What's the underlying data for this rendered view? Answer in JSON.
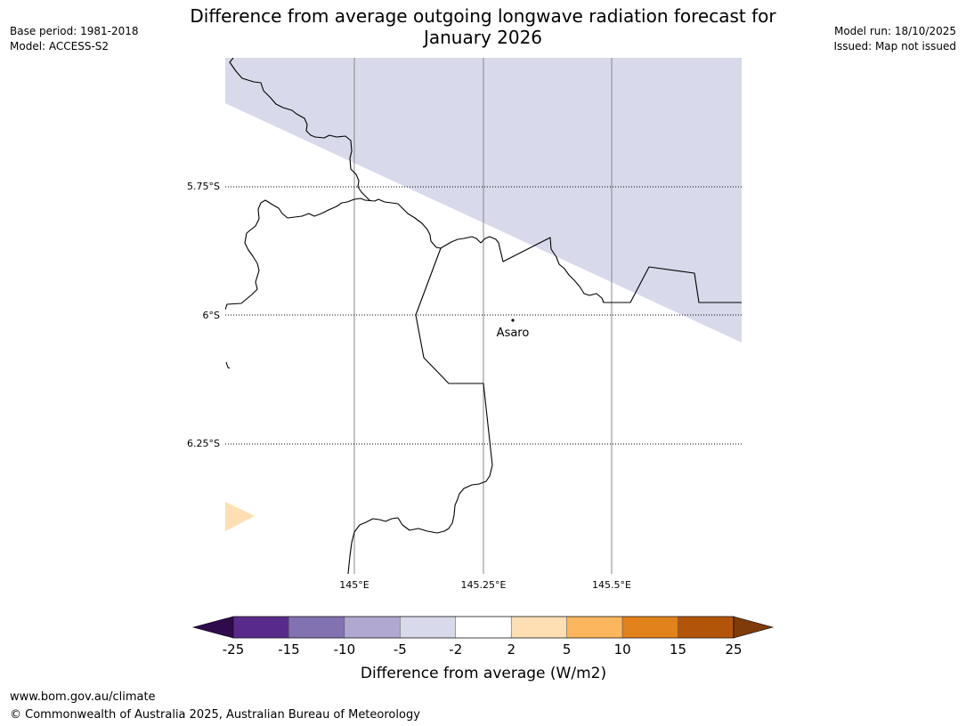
{
  "meta": {
    "base_period": "Base period: 1981-2018",
    "model": "Model: ACCESS-S2",
    "model_run": "Model run: 18/10/2025",
    "issued": "Issued: Map not issued"
  },
  "title": {
    "line1": "Difference from average outgoing longwave radiation forecast for",
    "line2": "January 2026"
  },
  "map": {
    "lon_labels": [
      "145°E",
      "145.25°E",
      "145.5°E"
    ],
    "lat_labels": [
      "5.75°S",
      "6°S",
      "6.25°S"
    ],
    "place": "Asaro",
    "fill_colors": {
      "minus5_to_minus2": "#d8d9ea",
      "plus2_to_plus5": "#fedfb3"
    }
  },
  "legend": {
    "label": "Difference from average (W/m2)",
    "ticks": [
      "-25",
      "-15",
      "-10",
      "-5",
      "-2",
      "2",
      "5",
      "10",
      "15",
      "25"
    ],
    "colors": [
      "#582a8b",
      "#8272b1",
      "#b0a8d0",
      "#d8d9ea",
      "#ffffff",
      "#fedfb3",
      "#fbb65e",
      "#e2821b",
      "#b35509"
    ],
    "under_color": "#2f0b4c",
    "over_color": "#7f3b09"
  },
  "footer": {
    "url": "www.bom.gov.au/climate",
    "copyright": "© Commonwealth of Australia 2025, Australian Bureau of Meteorology"
  }
}
